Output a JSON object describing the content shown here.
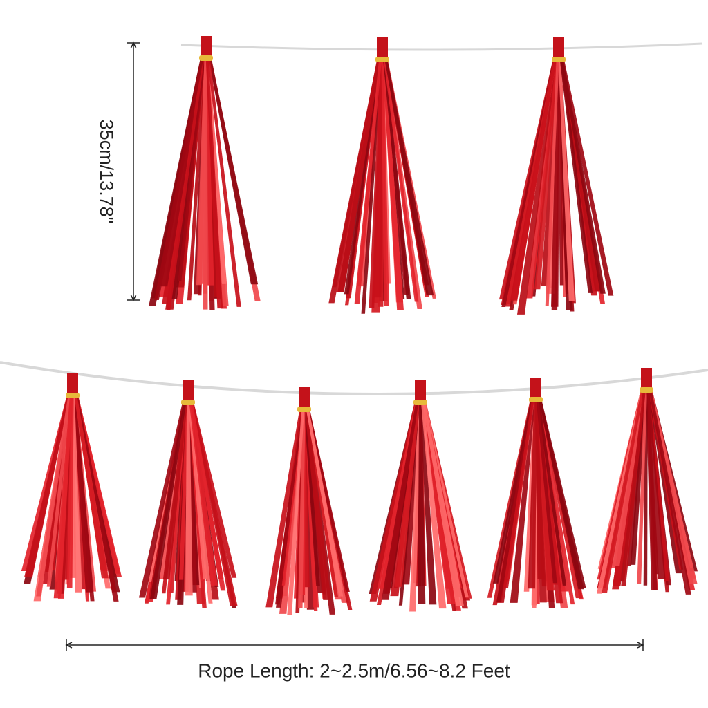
{
  "dimensions": {
    "height": "35cm/13.78\"",
    "rope_length": "Rope Length: 2~2.5m/6.56~8.2 Feet"
  }
}
